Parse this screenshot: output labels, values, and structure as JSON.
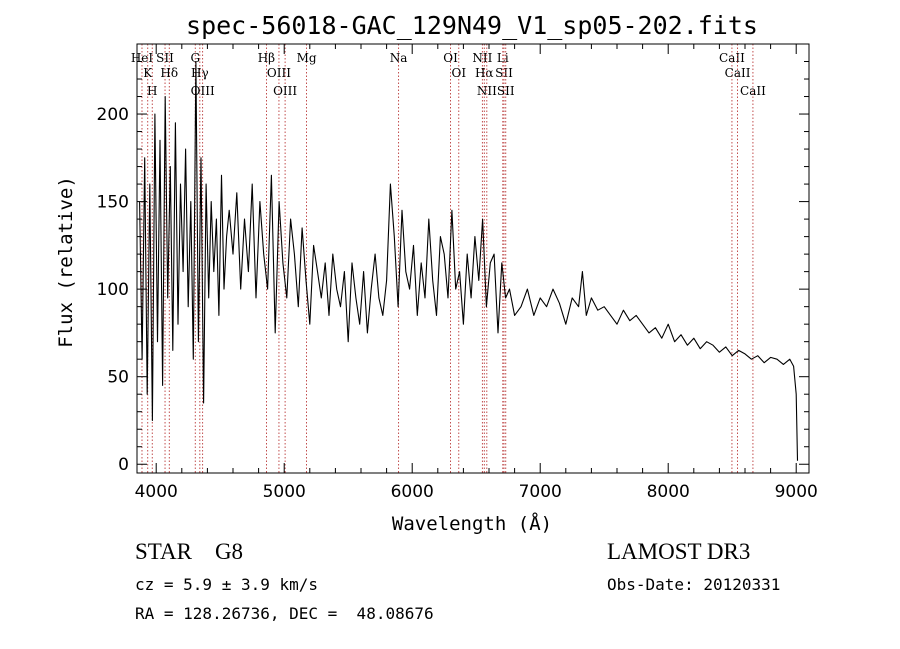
{
  "chart_data": {
    "type": "line",
    "title": "spec-56018-GAC_129N49_V1_sp05-202.fits",
    "xlabel": "Wavelength (Å)",
    "ylabel": "Flux (relative)",
    "xlim": [
      3850,
      9100
    ],
    "ylim": [
      -5,
      240
    ],
    "xticks": [
      4000,
      5000,
      6000,
      7000,
      8000,
      9000
    ],
    "yticks": [
      0,
      50,
      100,
      150,
      200
    ],
    "x_minor_step": 200,
    "y_minor_step": 10,
    "series": [
      {
        "name": "spectrum",
        "x": [
          3870,
          3890,
          3910,
          3930,
          3950,
          3970,
          3990,
          4010,
          4030,
          4050,
          4070,
          4090,
          4110,
          4130,
          4150,
          4170,
          4190,
          4210,
          4230,
          4250,
          4270,
          4290,
          4310,
          4330,
          4350,
          4370,
          4390,
          4410,
          4430,
          4450,
          4470,
          4490,
          4510,
          4530,
          4550,
          4570,
          4600,
          4630,
          4660,
          4690,
          4720,
          4750,
          4780,
          4810,
          4840,
          4870,
          4900,
          4930,
          4960,
          4990,
          5020,
          5050,
          5080,
          5110,
          5140,
          5170,
          5200,
          5230,
          5260,
          5290,
          5320,
          5350,
          5380,
          5410,
          5440,
          5470,
          5500,
          5530,
          5560,
          5590,
          5620,
          5650,
          5680,
          5710,
          5740,
          5770,
          5800,
          5830,
          5860,
          5890,
          5920,
          5950,
          5980,
          6010,
          6040,
          6070,
          6100,
          6130,
          6160,
          6190,
          6220,
          6250,
          6280,
          6310,
          6340,
          6370,
          6400,
          6430,
          6460,
          6490,
          6520,
          6550,
          6580,
          6610,
          6640,
          6670,
          6700,
          6730,
          6760,
          6800,
          6850,
          6900,
          6950,
          7000,
          7050,
          7100,
          7150,
          7200,
          7250,
          7300,
          7330,
          7360,
          7400,
          7450,
          7500,
          7550,
          7600,
          7650,
          7700,
          7750,
          7800,
          7850,
          7900,
          7950,
          8000,
          8050,
          8100,
          8150,
          8200,
          8250,
          8300,
          8350,
          8400,
          8450,
          8500,
          8550,
          8600,
          8650,
          8700,
          8750,
          8800,
          8850,
          8900,
          8950,
          8980,
          9000,
          9010
        ],
        "values": [
          150,
          60,
          175,
          40,
          160,
          25,
          200,
          70,
          185,
          45,
          210,
          95,
          170,
          65,
          195,
          80,
          160,
          110,
          180,
          90,
          150,
          60,
          230,
          70,
          175,
          35,
          160,
          95,
          150,
          110,
          140,
          85,
          165,
          100,
          130,
          145,
          120,
          155,
          100,
          140,
          110,
          160,
          95,
          150,
          120,
          100,
          165,
          75,
          150,
          115,
          95,
          140,
          120,
          90,
          135,
          105,
          80,
          125,
          110,
          95,
          115,
          85,
          120,
          100,
          90,
          110,
          70,
          115,
          95,
          80,
          110,
          75,
          100,
          120,
          95,
          85,
          105,
          160,
          130,
          90,
          145,
          110,
          100,
          125,
          85,
          115,
          95,
          140,
          105,
          85,
          130,
          120,
          95,
          145,
          100,
          110,
          80,
          120,
          95,
          130,
          105,
          140,
          90,
          115,
          120,
          75,
          115,
          95,
          100,
          85,
          90,
          100,
          85,
          95,
          90,
          100,
          92,
          80,
          95,
          90,
          110,
          85,
          95,
          88,
          90,
          85,
          80,
          88,
          82,
          85,
          80,
          75,
          78,
          72,
          80,
          70,
          74,
          68,
          72,
          66,
          70,
          68,
          64,
          67,
          62,
          65,
          63,
          60,
          62,
          58,
          61,
          60,
          57,
          60,
          56,
          40,
          2
        ]
      }
    ],
    "lines": [
      {
        "label": "HeI",
        "wave": 3889
      },
      {
        "label": "K",
        "wave": 3934
      },
      {
        "label": "H",
        "wave": 3969
      },
      {
        "label": "SII",
        "wave": 4069
      },
      {
        "label": "Hδ",
        "wave": 4102
      },
      {
        "label": "G",
        "wave": 4305
      },
      {
        "label": "Hγ",
        "wave": 4341
      },
      {
        "label": "OIII",
        "wave": 4363
      },
      {
        "label": "Hβ",
        "wave": 4861
      },
      {
        "label": "OIII",
        "wave": 4959
      },
      {
        "label": "OIII",
        "wave": 5007
      },
      {
        "label": "Mg",
        "wave": 5175
      },
      {
        "label": "Na",
        "wave": 5894
      },
      {
        "label": "OI",
        "wave": 6300
      },
      {
        "label": "OI",
        "wave": 6364
      },
      {
        "label": "NII",
        "wave": 6548
      },
      {
        "label": "Hα",
        "wave": 6563
      },
      {
        "label": "NII",
        "wave": 6583
      },
      {
        "label": "Li",
        "wave": 6708
      },
      {
        "label": "SII",
        "wave": 6717
      },
      {
        "label": "SII",
        "wave": 6731
      },
      {
        "label": "CaII",
        "wave": 8498
      },
      {
        "label": "CaII",
        "wave": 8542
      },
      {
        "label": "CaII",
        "wave": 8662
      }
    ]
  },
  "info": {
    "classification": "STAR    G8",
    "cz": "cz = 5.9 ± 3.9 km/s",
    "coords": "RA = 128.26736, DEC =  48.08676",
    "survey": "LAMOST DR3",
    "obs_date": "Obs-Date: 20120331"
  }
}
